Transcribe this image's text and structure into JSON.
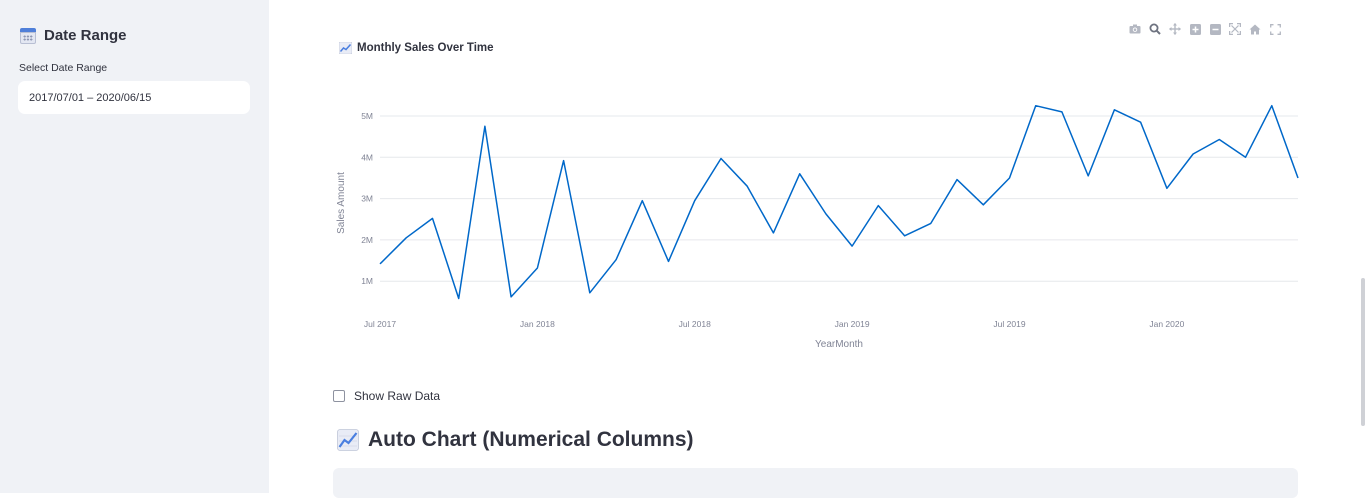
{
  "sidebar": {
    "title": "Date Range",
    "date_label": "Select Date Range",
    "date_value": "2017/07/01 – 2020/06/15"
  },
  "modebar": {
    "icons": [
      "camera-icon",
      "zoom-icon",
      "pan-icon",
      "zoom-in-icon",
      "zoom-out-icon",
      "autoscale-icon",
      "reset-axes-icon",
      "fullscreen-icon"
    ]
  },
  "main": {
    "chart_title": "Monthly Sales Over Time",
    "show_raw_label": "Show Raw Data",
    "show_raw_checked": false,
    "auto_chart_title": "Auto Chart (Numerical Columns)"
  },
  "chart_data": {
    "type": "line",
    "title": "Monthly Sales Over Time",
    "xlabel": "YearMonth",
    "ylabel": "Sales Amount",
    "x_tick_labels": [
      "Jul 2017",
      "Jan 2018",
      "Jul 2018",
      "Jan 2019",
      "Jul 2019",
      "Jan 2020"
    ],
    "y_tick_labels": [
      "1M",
      "2M",
      "3M",
      "4M",
      "5M"
    ],
    "ylim": [
      0.4,
      5.5
    ],
    "grid": true,
    "color": "#0068c9",
    "x": [
      "2017-07",
      "2017-08",
      "2017-09",
      "2017-10",
      "2017-11",
      "2017-12",
      "2018-01",
      "2018-02",
      "2018-03",
      "2018-04",
      "2018-05",
      "2018-06",
      "2018-07",
      "2018-08",
      "2018-09",
      "2018-10",
      "2018-11",
      "2018-12",
      "2019-01",
      "2019-02",
      "2019-03",
      "2019-04",
      "2019-05",
      "2019-06",
      "2019-07",
      "2019-08",
      "2019-09",
      "2019-10",
      "2019-11",
      "2019-12",
      "2020-01",
      "2020-02",
      "2020-03",
      "2020-04",
      "2020-05",
      "2020-06"
    ],
    "values": [
      1.42,
      2.05,
      2.52,
      0.58,
      4.75,
      0.62,
      1.32,
      3.92,
      0.72,
      1.52,
      2.95,
      1.48,
      2.95,
      3.97,
      3.3,
      2.17,
      3.6,
      2.63,
      1.85,
      2.83,
      2.1,
      2.4,
      3.46,
      2.85,
      3.5,
      5.25,
      5.1,
      3.55,
      5.15,
      4.85,
      3.25,
      4.08,
      4.43,
      4.0,
      5.25,
      3.5
    ]
  }
}
